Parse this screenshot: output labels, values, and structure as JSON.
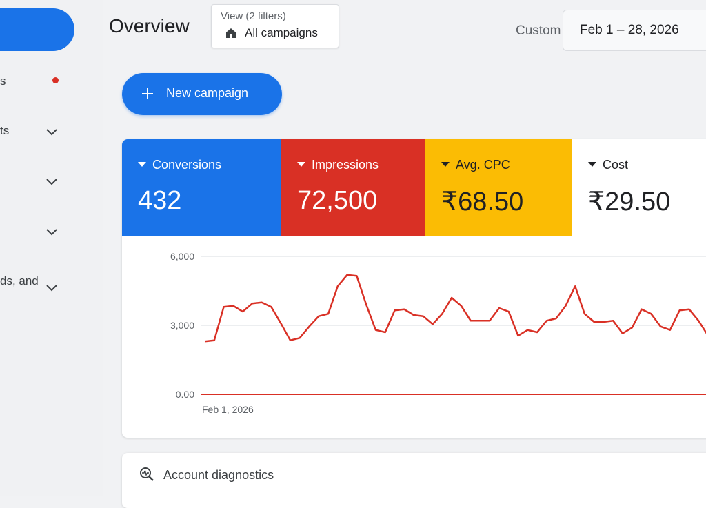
{
  "sidebar": {
    "items": [
      {
        "label": "s",
        "has_alert_dot": true
      },
      {
        "label": "ts",
        "has_chevron": true
      },
      {
        "label": "",
        "has_chevron": true
      },
      {
        "label": "",
        "has_chevron": true
      },
      {
        "label": "ds, and",
        "has_chevron": true
      }
    ]
  },
  "header": {
    "title": "Overview",
    "view": {
      "caption": "View (2 filters)",
      "value": "All campaigns",
      "icon": "home-icon"
    },
    "date_range": {
      "preset": "Custom",
      "value": "Feb 1 – 28, 2026"
    }
  },
  "new_campaign": {
    "label": "New campaign",
    "icon": "plus-icon"
  },
  "metrics": [
    {
      "label": "Conversions",
      "value": "432",
      "color": "#1a73e8"
    },
    {
      "label": "Impressions",
      "value": "72,500",
      "color": "#d93025"
    },
    {
      "label": "Avg. CPC",
      "value": "₹68.50",
      "color": "#fbbc04"
    },
    {
      "label": "Cost",
      "value": "₹29.50",
      "color": "#ffffff"
    }
  ],
  "chart_data": {
    "type": "line",
    "ylim": [
      0,
      6000
    ],
    "y_ticks": [
      "6,000",
      "3,000",
      "0.00"
    ],
    "x_tick_labels": [
      "Feb 1, 2026"
    ],
    "grid": true,
    "series": [
      {
        "color": "#d93025",
        "values": [
          2300,
          2350,
          3800,
          3850,
          3600,
          3950,
          4000,
          3800,
          3100,
          2350,
          2450,
          2950,
          3400,
          3500,
          4700,
          5200,
          5150,
          3900,
          2800,
          2700,
          3650,
          3700,
          3450,
          3400,
          3050,
          3500,
          4200,
          3850,
          3200,
          3200,
          3200,
          3750,
          3600,
          2550,
          2800,
          2700,
          3200,
          3300,
          3850,
          4700,
          3500,
          3150,
          3150,
          3200,
          2650,
          2900,
          3700,
          3500,
          2950,
          2800,
          3650,
          3700,
          3200,
          2550
        ]
      }
    ]
  },
  "diagnostics": {
    "label": "Account diagnostics",
    "icon": "search-diagnostics-icon"
  }
}
